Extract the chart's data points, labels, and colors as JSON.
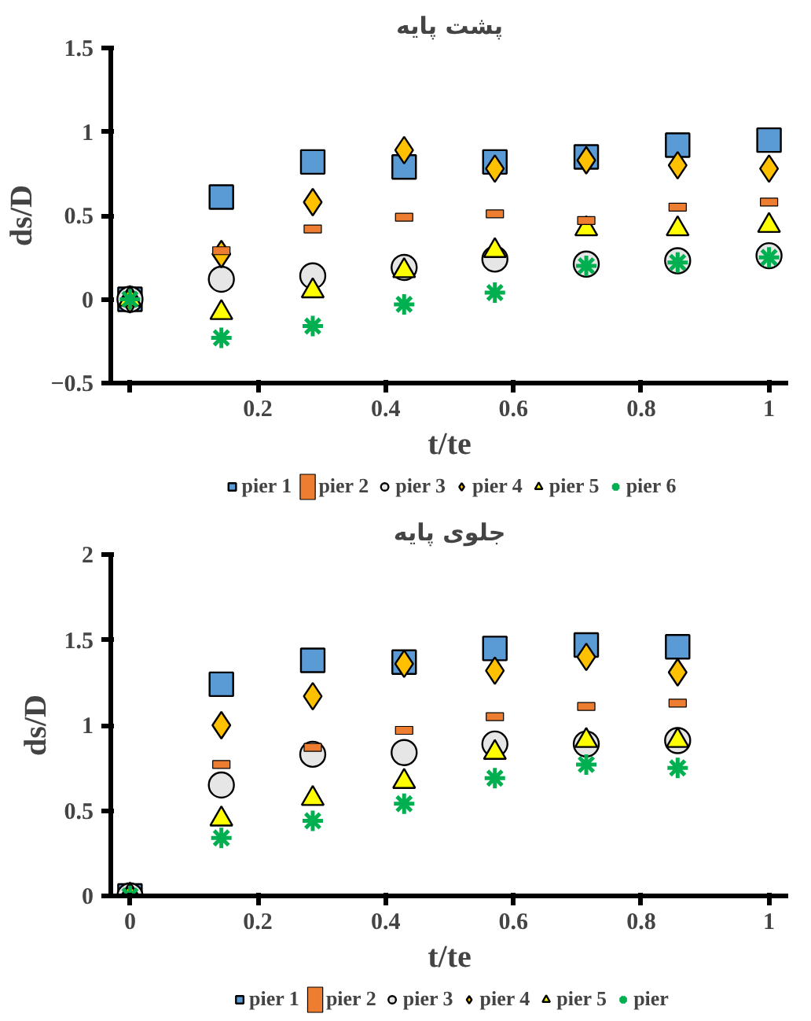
{
  "chart_data": [
    {
      "type": "scatter",
      "title": "پشت پایه",
      "xlabel": "t/te",
      "ylabel": "ds/D",
      "x": [
        0,
        0.143,
        0.286,
        0.429,
        0.571,
        0.714,
        0.857,
        1
      ],
      "xlim": [
        -0.03,
        1.03
      ],
      "ylim": [
        -0.5,
        1.5
      ],
      "xticks": [
        {
          "value": 0,
          "label": null
        },
        0.2,
        0.4,
        0.6,
        0.8,
        1
      ],
      "yticks": [
        -0.5,
        0,
        0.5,
        1,
        1.5
      ],
      "grid": false,
      "legend": "bottom",
      "series": [
        {
          "name": "pier 1",
          "color": "#5b9bd5",
          "marker": "square",
          "values": [
            0,
            0.61,
            0.82,
            0.79,
            0.82,
            0.85,
            0.92,
            0.95
          ]
        },
        {
          "name": "pier 2",
          "color": "#ed7d31",
          "values": [
            null,
            0.29,
            0.42,
            0.49,
            0.51,
            0.47,
            0.55,
            0.58
          ]
        },
        {
          "name": "pier 3",
          "color": "#e7e6e6",
          "marker": "circle",
          "values": [
            0,
            0.12,
            0.14,
            0.19,
            0.24,
            0.21,
            0.23,
            0.26
          ]
        },
        {
          "name": "pier 4",
          "color": "#ffc000",
          "marker": "diamond",
          "values": [
            0,
            0.27,
            0.58,
            0.89,
            0.78,
            0.83,
            0.8,
            0.78
          ]
        },
        {
          "name": "pier 5",
          "color": "#ffff00",
          "marker": "triangle",
          "values": [
            0,
            -0.08,
            0.05,
            0.17,
            0.29,
            0.42,
            0.42,
            0.44
          ]
        },
        {
          "name": "pier 6",
          "color": "#00b050",
          "marker": "cross",
          "values": [
            0,
            -0.23,
            -0.16,
            -0.03,
            0.04,
            0.2,
            0.22,
            0.25
          ]
        }
      ]
    },
    {
      "type": "scatter",
      "title": "جلوی پایه",
      "xlabel": "t/te",
      "ylabel": "ds/D",
      "x": [
        0,
        0.143,
        0.286,
        0.429,
        0.571,
        0.714,
        0.857
      ],
      "xlim": [
        -0.03,
        1.03
      ],
      "ylim": [
        0,
        2
      ],
      "xticks": [
        0,
        0.2,
        0.4,
        0.6,
        0.8,
        1
      ],
      "yticks": [
        0,
        0.5,
        1,
        1.5,
        2
      ],
      "grid": false,
      "legend": "bottom",
      "series": [
        {
          "name": "pier 1",
          "color": "#5b9bd5",
          "marker": "square",
          "values": [
            0,
            1.24,
            1.38,
            1.37,
            1.45,
            1.47,
            1.46
          ]
        },
        {
          "name": "pier 2",
          "color": "#ed7d31",
          "values": [
            null,
            0.77,
            0.87,
            0.97,
            1.05,
            1.11,
            1.13
          ]
        },
        {
          "name": "pier 3",
          "color": "#e7e6e6",
          "marker": "circle",
          "values": [
            0,
            0.65,
            0.83,
            0.84,
            0.89,
            0.89,
            0.91
          ]
        },
        {
          "name": "pier 4",
          "color": "#ffc000",
          "marker": "diamond",
          "values": [
            0,
            1.0,
            1.17,
            1.36,
            1.32,
            1.4,
            1.31
          ]
        },
        {
          "name": "pier 5",
          "color": "#ffff00",
          "marker": "triangle",
          "values": [
            0,
            0.45,
            0.57,
            0.67,
            0.84,
            0.91,
            0.91
          ]
        },
        {
          "name": "pier",
          "color": "#00b050",
          "marker": "cross",
          "values": [
            0,
            0.34,
            0.44,
            0.54,
            0.69,
            0.77,
            0.75
          ]
        }
      ]
    }
  ]
}
